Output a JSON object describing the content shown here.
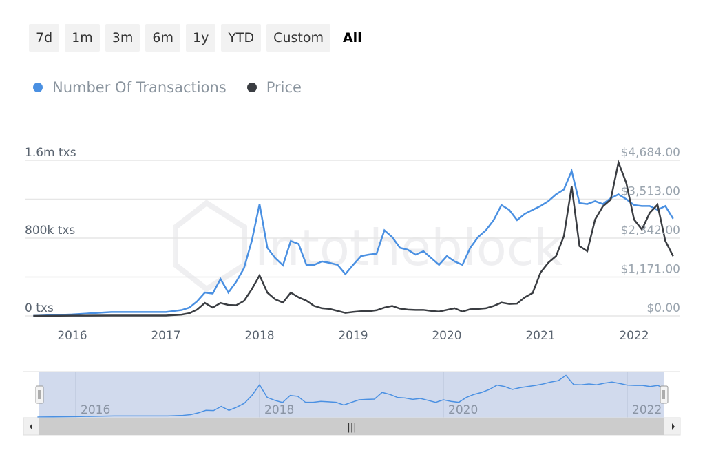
{
  "range_buttons": [
    "7d",
    "1m",
    "3m",
    "6m",
    "1y",
    "YTD",
    "Custom",
    "All"
  ],
  "selected_range": "All",
  "watermark": "intotheblock",
  "colors": {
    "transactions": "#4a90e2",
    "price": "#3a3d42",
    "navigator_fill": "#ccd6eb"
  },
  "chart_data": {
    "type": "line",
    "legend_placement": "top-left",
    "grid": true,
    "series": [
      {
        "name": "Number Of Transactions",
        "axis": "left",
        "unit": "txs"
      },
      {
        "name": "Price",
        "axis": "right",
        "unit": "USD"
      }
    ],
    "left_axis": {
      "ticks": [
        "0 txs",
        "800k txs",
        "1.6m txs"
      ],
      "range": [
        0,
        1600000
      ]
    },
    "right_axis": {
      "ticks": [
        "$0.00",
        "$1,171.00",
        "$2,342.00",
        "$3,513.00",
        "$4,684.00"
      ],
      "range": [
        0,
        4684
      ]
    },
    "x_ticks": [
      "2016",
      "2017",
      "2018",
      "2019",
      "2020",
      "2021",
      "2022"
    ],
    "navigator_ticks": [
      "2016",
      "2018",
      "2020",
      "2022"
    ],
    "dates": [
      "2015-08",
      "2016-01",
      "2016-06",
      "2017-01",
      "2017-03",
      "2017-04",
      "2017-05",
      "2017-06",
      "2017-07",
      "2017-08",
      "2017-09",
      "2017-10",
      "2017-11",
      "2017-12",
      "2018-01",
      "2018-02",
      "2018-03",
      "2018-04",
      "2018-05",
      "2018-06",
      "2018-07",
      "2018-08",
      "2018-09",
      "2018-10",
      "2018-11",
      "2018-12",
      "2019-01",
      "2019-02",
      "2019-03",
      "2019-04",
      "2019-05",
      "2019-06",
      "2019-07",
      "2019-08",
      "2019-09",
      "2019-10",
      "2019-11",
      "2019-12",
      "2020-01",
      "2020-02",
      "2020-03",
      "2020-04",
      "2020-05",
      "2020-06",
      "2020-07",
      "2020-08",
      "2020-09",
      "2020-10",
      "2020-11",
      "2020-12",
      "2021-01",
      "2021-02",
      "2021-03",
      "2021-04",
      "2021-05",
      "2021-06",
      "2021-07",
      "2021-08",
      "2021-09",
      "2021-10",
      "2021-11",
      "2021-12",
      "2022-01",
      "2022-02",
      "2022-03",
      "2022-04",
      "2022-05",
      "2022-06"
    ],
    "transactions": [
      0,
      15000,
      40000,
      40000,
      60000,
      85000,
      150000,
      240000,
      230000,
      380000,
      240000,
      350000,
      490000,
      770000,
      1150000,
      700000,
      595000,
      520000,
      770000,
      740000,
      525000,
      525000,
      560000,
      545000,
      525000,
      430000,
      525000,
      615000,
      630000,
      640000,
      880000,
      810000,
      700000,
      680000,
      630000,
      665000,
      595000,
      525000,
      615000,
      560000,
      525000,
      700000,
      810000,
      880000,
      985000,
      1140000,
      1090000,
      985000,
      1050000,
      1090000,
      1130000,
      1180000,
      1250000,
      1300000,
      1490000,
      1160000,
      1150000,
      1180000,
      1150000,
      1210000,
      1250000,
      1200000,
      1140000,
      1130000,
      1130000,
      1090000,
      1130000,
      1000000
    ],
    "price": [
      0,
      8,
      10,
      10,
      40,
      80,
      190,
      390,
      250,
      390,
      330,
      320,
      450,
      800,
      1220,
      700,
      500,
      400,
      700,
      560,
      460,
      300,
      230,
      210,
      150,
      90,
      120,
      140,
      140,
      170,
      250,
      300,
      220,
      190,
      180,
      180,
      150,
      130,
      180,
      230,
      130,
      200,
      210,
      230,
      300,
      400,
      360,
      370,
      560,
      690,
      1300,
      1600,
      1800,
      2400,
      3900,
      2100,
      1950,
      2900,
      3300,
      3500,
      4620,
      4000,
      2900,
      2600,
      3100,
      3350,
      2260,
      1800
    ]
  }
}
